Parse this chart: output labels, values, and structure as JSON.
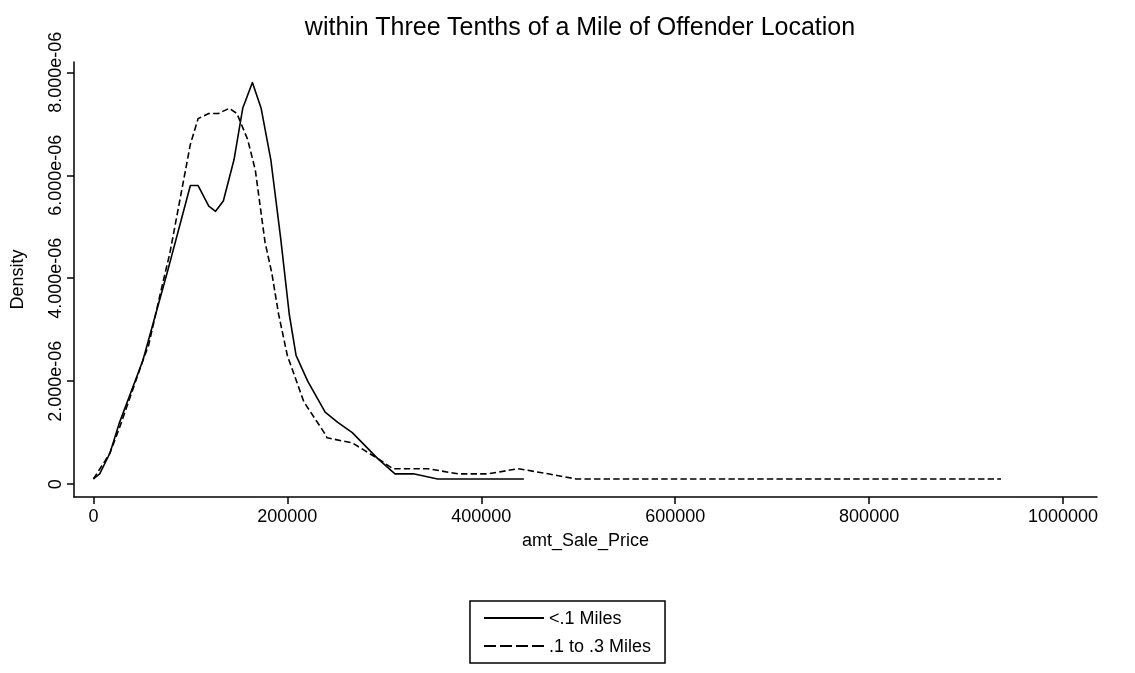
{
  "chart_data": {
    "type": "line",
    "title": "within Three Tenths of a Mile of Offender Location",
    "xlabel": "amt_Sale_Price",
    "ylabel": "Density",
    "xlim": [
      -20000,
      1035000
    ],
    "xticks": [
      0,
      200000,
      400000,
      600000,
      800000,
      1000000
    ],
    "ylim": [
      -2.5e-07,
      8.2e-06
    ],
    "yticks": [
      0,
      {
        "value": 2e-06,
        "label": "2.000e-06"
      },
      {
        "value": 4e-06,
        "label": "4.000e-06"
      },
      {
        "value": 6e-06,
        "label": "6.000e-06"
      },
      {
        "value": 8e-06,
        "label": "8.000e-06"
      }
    ],
    "grid": false,
    "legend": "bottom",
    "marker": "none",
    "series": [
      {
        "name": "<.1 Miles",
        "color": "#000000",
        "line_style": "solid",
        "x": [
          0,
          6500,
          17000,
          27000,
          51000,
          76000,
          100000,
          108000,
          119000,
          126000,
          134000,
          145000,
          154000,
          164000,
          173000,
          183000,
          193000,
          202000,
          209000,
          221000,
          239000,
          252000,
          267000,
          293000,
          311000,
          330000,
          355000,
          376000,
          407000,
          426000,
          444000
        ],
        "values": [
          1e-07,
          2e-07,
          6e-07,
          1.2e-06,
          2.4e-06,
          4.1e-06,
          5.8e-06,
          5.8e-06,
          5.4e-06,
          5.3e-06,
          5.5e-06,
          6.3e-06,
          7.3e-06,
          7.8e-06,
          7.3e-06,
          6.3e-06,
          4.8e-06,
          3.3e-06,
          2.5e-06,
          2e-06,
          1.4e-06,
          1.2e-06,
          1e-06,
          5e-07,
          2e-07,
          2e-07,
          1e-07,
          1e-07,
          1e-07,
          1e-07,
          1e-07
        ]
      },
      {
        "name": ".1 to .3 Miles",
        "color": "#000000",
        "line_style": "dashed",
        "x": [
          0,
          17000,
          27000,
          51000,
          57000,
          69000,
          79000,
          89000,
          100000,
          108000,
          119000,
          129000,
          140000,
          148000,
          159000,
          167000,
          177000,
          184000,
          191000,
          200000,
          217000,
          238000,
          241000,
          267000,
          293000,
          309000,
          345000,
          376000,
          407000,
          438000,
          469000,
          498000,
          550000,
          602000,
          656000,
          707000,
          759000,
          811000,
          863000,
          936000
        ],
        "values": [
          1e-07,
          6e-07,
          1.1e-06,
          2.4e-06,
          2.7e-06,
          3.7e-06,
          4.5e-06,
          5.5e-06,
          6.6e-06,
          7.1e-06,
          7.2e-06,
          7.2e-06,
          7.3e-06,
          7.2e-06,
          6.7e-06,
          6.1e-06,
          4.7e-06,
          4.1e-06,
          3.3e-06,
          2.5e-06,
          1.6e-06,
          1e-06,
          9e-07,
          8e-07,
          5e-07,
          3e-07,
          3e-07,
          2e-07,
          2e-07,
          3e-07,
          2e-07,
          1e-07,
          1e-07,
          1e-07,
          1e-07,
          1e-07,
          1e-07,
          1e-07,
          1e-07,
          1e-07
        ]
      }
    ]
  }
}
